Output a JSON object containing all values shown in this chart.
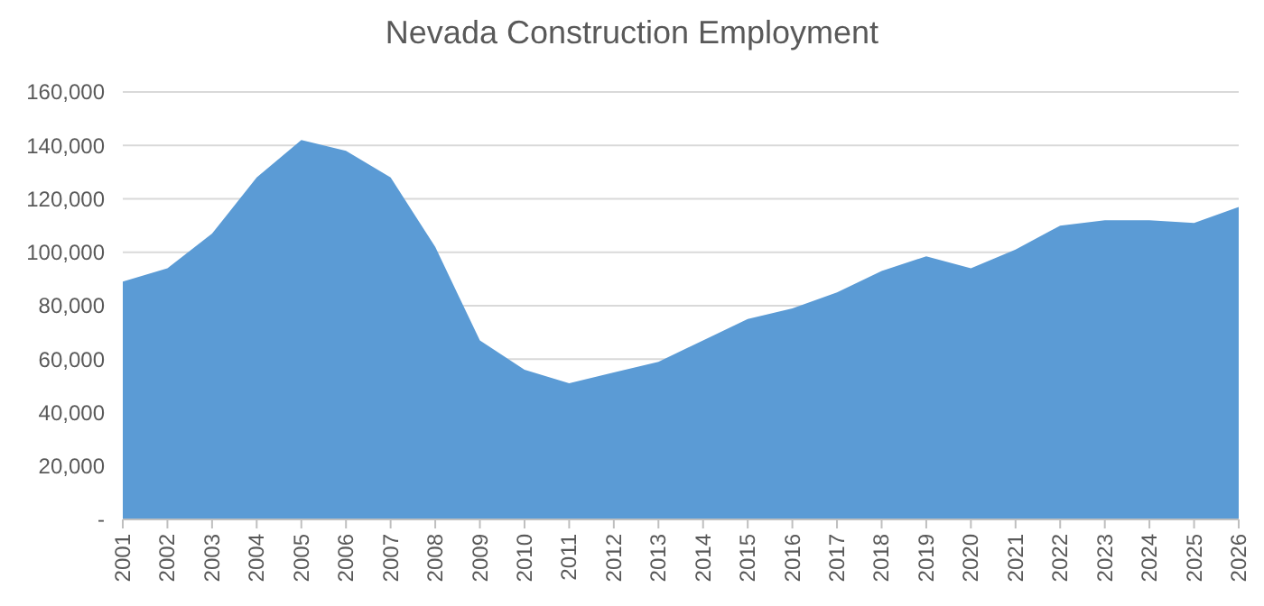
{
  "chart_data": {
    "type": "area",
    "title": "Nevada Construction Employment",
    "categories": [
      "2001",
      "2002",
      "2003",
      "2004",
      "2005",
      "2006",
      "2007",
      "2008",
      "2009",
      "2010",
      "2011",
      "2012",
      "2013",
      "2014",
      "2015",
      "2016",
      "2017",
      "2018",
      "2019",
      "2020",
      "2021",
      "2022",
      "2023",
      "2024",
      "2025",
      "2026"
    ],
    "series": [
      {
        "color": "#5b9bd5",
        "values": [
          89000,
          94000,
          107000,
          128000,
          142000,
          138000,
          128000,
          102000,
          67000,
          56000,
          51000,
          55000,
          59000,
          67000,
          75000,
          79000,
          85000,
          93000,
          98500,
          94000,
          101000,
          110000,
          112000,
          112000,
          111000,
          117000
        ]
      }
    ],
    "ylim": [
      0,
      160000
    ],
    "yticks": [
      {
        "value": 0,
        "label": "-"
      },
      {
        "value": 20000,
        "label": "20,000"
      },
      {
        "value": 40000,
        "label": "40,000"
      },
      {
        "value": 60000,
        "label": "60,000"
      },
      {
        "value": 80000,
        "label": "80,000"
      },
      {
        "value": 100000,
        "label": "100,000"
      },
      {
        "value": 120000,
        "label": "120,000"
      },
      {
        "value": 140000,
        "label": "140,000"
      },
      {
        "value": 160000,
        "label": "160,000"
      }
    ],
    "grid": "y"
  }
}
